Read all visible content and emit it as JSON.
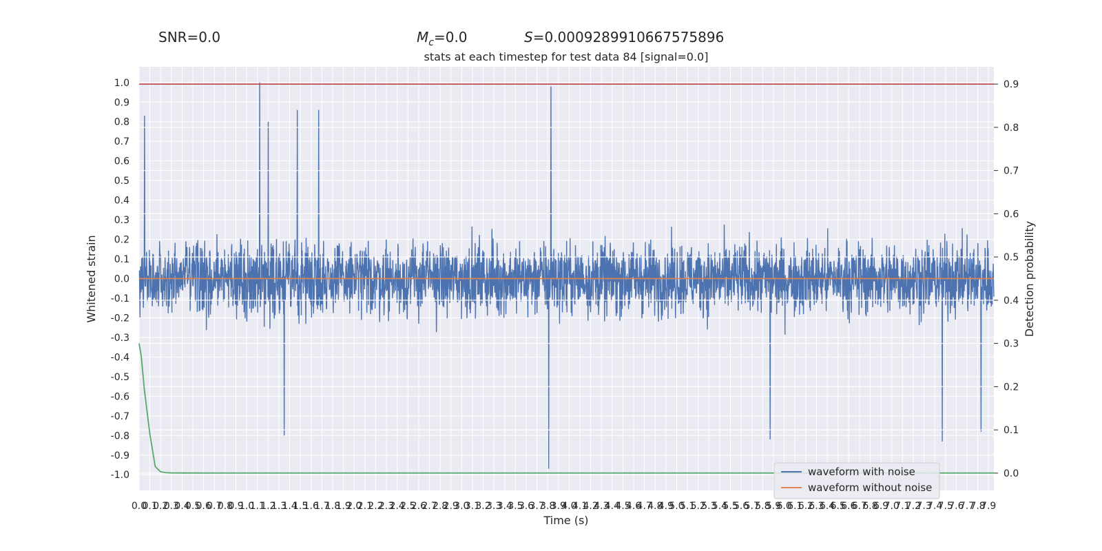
{
  "chart_data": {
    "type": "line",
    "suptitle": {
      "snr": "SNR=0.0",
      "mc_symbol": "M",
      "mc_sub": "c",
      "mc_value": "=0.0",
      "s_symbol": "S",
      "s_value": "=0.0009289910667575896"
    },
    "title": "stats at each timestep for test data 84 [signal=0.0]",
    "xlabel": "Time (s)",
    "ylabel": "Whitened strain",
    "ylabel_right": "Detection probability",
    "xlim": [
      0.0,
      7.95
    ],
    "ylim": [
      -1.08,
      1.08
    ],
    "ylim_right": [
      -0.04,
      0.94
    ],
    "x_ticks": [
      "0.0",
      "0.1",
      "0.2",
      "0.3",
      "0.4",
      "0.5",
      "0.6",
      "0.7",
      "0.8",
      "0.9",
      "1.0",
      "1.1",
      "1.2",
      "1.3",
      "1.4",
      "1.5",
      "1.6",
      "1.7",
      "1.8",
      "1.9",
      "2.0",
      "2.1",
      "2.2",
      "2.3",
      "2.4",
      "2.5",
      "2.6",
      "2.7",
      "2.8",
      "2.9",
      "3.0",
      "3.1",
      "3.2",
      "3.3",
      "3.4",
      "3.5",
      "3.6",
      "3.7",
      "3.8",
      "3.9",
      "4.0",
      "4.1",
      "4.2",
      "4.3",
      "4.4",
      "4.5",
      "4.6",
      "4.7",
      "4.8",
      "4.9",
      "5.0",
      "5.1",
      "5.2",
      "5.3",
      "5.4",
      "5.5",
      "5.6",
      "5.7",
      "5.8",
      "5.9",
      "6.0",
      "6.1",
      "6.2",
      "6.3",
      "6.4",
      "6.5",
      "6.6",
      "6.7",
      "6.8",
      "6.9",
      "7.0",
      "7.1",
      "7.2",
      "7.3",
      "7.4",
      "7.5",
      "7.6",
      "7.7",
      "7.8",
      "7.9"
    ],
    "y_ticks": [
      "1.0",
      "0.9",
      "0.8",
      "0.7",
      "0.6",
      "0.5",
      "0.4",
      "0.3",
      "0.2",
      "0.1",
      "0.0",
      "-0.1",
      "-0.2",
      "-0.3",
      "-0.4",
      "-0.5",
      "-0.6",
      "-0.7",
      "-0.8",
      "-0.9",
      "-1.0"
    ],
    "y_ticks_right": [
      "0.9",
      "0.8",
      "0.7",
      "0.6",
      "0.5",
      "0.4",
      "0.3",
      "0.2",
      "0.1",
      "0.0"
    ],
    "grid": true,
    "legend_position": "lower-right",
    "series": [
      {
        "name": "waveform with noise",
        "color": "#4c72b0",
        "axis": "left",
        "notable_points": [
          {
            "x": 0.05,
            "y": 0.83
          },
          {
            "x": 1.12,
            "y": 1.0
          },
          {
            "x": 1.2,
            "y": 0.8
          },
          {
            "x": 1.47,
            "y": 0.86
          },
          {
            "x": 1.67,
            "y": 0.86
          },
          {
            "x": 3.83,
            "y": 0.98
          },
          {
            "x": 3.81,
            "y": -0.97
          },
          {
            "x": 1.35,
            "y": -0.8
          },
          {
            "x": 5.87,
            "y": -0.82
          },
          {
            "x": 7.47,
            "y": -0.83
          },
          {
            "x": 7.83,
            "y": -0.78
          }
        ]
      },
      {
        "name": "waveform without noise",
        "color": "#dd8452",
        "axis": "left",
        "x": [
          0.0,
          7.95
        ],
        "y": [
          0.0,
          0.0
        ]
      },
      {
        "name": "",
        "color": "#55a868",
        "axis": "right",
        "x": [
          0.0,
          0.02,
          0.05,
          0.1,
          0.15,
          0.2,
          0.25,
          0.3,
          0.4,
          0.6,
          1.0,
          2.0,
          3.0,
          4.0,
          5.0,
          6.0,
          7.0,
          7.95
        ],
        "y": [
          0.3,
          0.27,
          0.19,
          0.09,
          0.015,
          0.003,
          0.001,
          0.0005,
          0.0003,
          0.0002,
          0.0002,
          0.0002,
          0.0002,
          0.0002,
          0.0002,
          0.0002,
          0.0002,
          0.0002
        ]
      },
      {
        "name": "",
        "color": "#c44e52",
        "axis": "right",
        "x": [
          0.0,
          7.95
        ],
        "y": [
          0.9,
          0.9
        ]
      }
    ]
  }
}
